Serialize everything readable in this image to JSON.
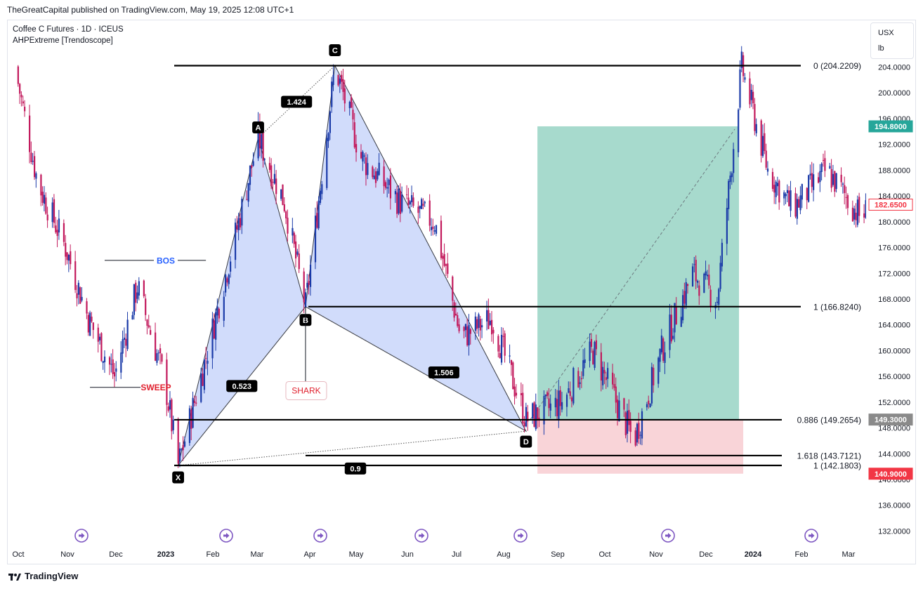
{
  "header": {
    "published": "TheGreatCapital published on TradingView.com, May 19, 2025 12:08 UTC+1"
  },
  "legend": {
    "symbol": "Coffee C Futures · 1D · ICEUS",
    "indicator": "AHPExtreme [Trendoscope]"
  },
  "unit_box": {
    "currency": "USX",
    "unit": "lb"
  },
  "footer": {
    "brand": "TradingView"
  },
  "colors": {
    "up": "#1a3aa8",
    "down": "#c2185b",
    "harmonic_fill": "#c9d6fb",
    "profit_fill": "#9dd6c8",
    "loss_fill": "#f8cfd4",
    "sweep": "#e0202e",
    "bos": "#2962ff",
    "profit_tag": "#26a69a",
    "loss_tag": "#f23645",
    "entry_tag": "#8a8a8a",
    "last_tag": "#f23645"
  },
  "chart_data": {
    "type": "candlestick",
    "price_axis": {
      "ticks": [
        "204.0000",
        "200.0000",
        "196.0000",
        "192.0000",
        "188.0000",
        "184.0000",
        "180.0000",
        "176.0000",
        "172.0000",
        "168.0000",
        "164.0000",
        "160.0000",
        "156.0000",
        "152.0000",
        "148.0000",
        "144.0000",
        "140.0000",
        "136.0000",
        "132.0000"
      ],
      "range": [
        130.0,
        207.5
      ]
    },
    "time_axis": {
      "ticks": [
        "Oct",
        "Nov",
        "Dec",
        "2023",
        "Feb",
        "Mar",
        "Apr",
        "May",
        "Jun",
        "Jul",
        "Aug",
        "Sep",
        "Oct",
        "Nov",
        "Dec",
        "2024",
        "Feb",
        "Mar"
      ]
    },
    "close_path": [
      [
        "2022-10-01",
        204.0
      ],
      [
        "2022-10-15",
        186.0
      ],
      [
        "2022-11-01",
        176.0
      ],
      [
        "2022-11-15",
        165.0
      ],
      [
        "2022-12-01",
        156.0
      ],
      [
        "2022-12-15",
        170.0
      ],
      [
        "2023-01-01",
        155.0
      ],
      [
        "2023-01-09",
        142.2
      ],
      [
        "2023-01-25",
        158.0
      ],
      [
        "2023-02-15",
        180.0
      ],
      [
        "2023-02-27",
        193.0
      ],
      [
        "2023-03-15",
        183.0
      ],
      [
        "2023-03-28",
        166.8
      ],
      [
        "2023-04-15",
        204.2
      ],
      [
        "2023-05-01",
        190.0
      ],
      [
        "2023-05-25",
        183.0
      ],
      [
        "2023-06-15",
        180.0
      ],
      [
        "2023-07-01",
        162.0
      ],
      [
        "2023-07-20",
        165.0
      ],
      [
        "2023-08-10",
        149.3
      ],
      [
        "2023-09-01",
        152.0
      ],
      [
        "2023-09-20",
        160.0
      ],
      [
        "2023-10-15",
        146.0
      ],
      [
        "2023-11-01",
        160.0
      ],
      [
        "2023-11-20",
        172.0
      ],
      [
        "2023-12-05",
        168.0
      ],
      [
        "2023-12-20",
        204.0
      ],
      [
        "2024-01-05",
        188.0
      ],
      [
        "2024-01-20",
        182.0
      ],
      [
        "2024-02-10",
        188.0
      ],
      [
        "2024-03-01",
        181.0
      ],
      [
        "2024-03-15",
        182.65
      ]
    ],
    "pattern": {
      "name": "SHARK",
      "points": [
        {
          "label": "X",
          "date": "2023-01-09",
          "price": 142.18
        },
        {
          "label": "A",
          "date": "2023-02-27",
          "price": 193.0
        },
        {
          "label": "B",
          "date": "2023-03-28",
          "price": 166.82
        },
        {
          "label": "C",
          "date": "2023-04-15",
          "price": 204.22
        },
        {
          "label": "D",
          "date": "2023-08-10",
          "price": 147.5
        }
      ],
      "ratios": [
        "1.424",
        "0.523",
        "1.506",
        "0.9"
      ]
    },
    "fib_levels": [
      {
        "label": "0 (204.2209)",
        "price": 204.22
      },
      {
        "label": "1 (166.8240)",
        "price": 166.82
      },
      {
        "label": "0.886 (149.2654)",
        "price": 149.27
      },
      {
        "label": "1.618 (143.7121)",
        "price": 143.71
      },
      {
        "label": "1 (142.1803)",
        "price": 142.18
      }
    ],
    "annotations": {
      "bos": "BOS",
      "sweep": "SWEEP"
    },
    "position": {
      "target": 194.8,
      "entry": 149.3,
      "stop": 140.9
    },
    "price_tags": {
      "target": "194.8000",
      "last": "182.6500",
      "entry": "149.3000",
      "stop": "140.9000"
    }
  }
}
